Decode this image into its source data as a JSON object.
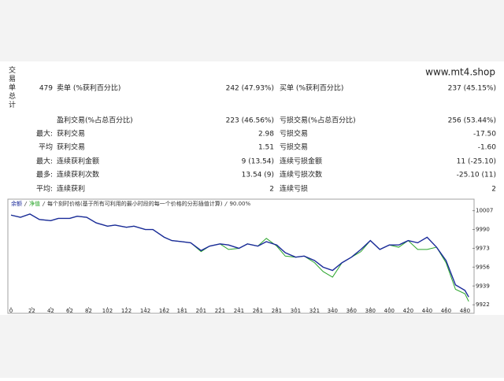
{
  "report": {
    "side_label": "交易单总计",
    "site": "www.mt4.shop",
    "rows": [
      [
        "479",
        "卖单 (%获利百分比)",
        "242 (47.93%)",
        "买单 (%获利百分比)",
        "237 (45.15%)"
      ],
      [
        null,
        "盈利交易(%占总百分比)",
        "223 (46.56%)",
        "亏损交易(%占总百分比)",
        "256 (53.44%)"
      ],
      [
        "最大:",
        "获利交易",
        "2.98",
        "亏损交易",
        "-17.50"
      ],
      [
        "平均",
        "获利交易",
        "1.51",
        "亏损交易",
        "-1.60"
      ],
      [
        "最大:",
        "连续获利金额",
        "9 (13.54)",
        "连续亏损金额",
        "11 (-25.10)"
      ],
      [
        "最多:",
        "连续获利次数",
        "13.54 (9)",
        "连续亏损次数",
        "-25.10 (11)"
      ],
      [
        "平均:",
        "连续获利",
        "2",
        "连续亏损",
        "2"
      ]
    ]
  },
  "chart_data": {
    "type": "line",
    "legend_note": "每个刻时价格(基于所有可利用的最小时段的每一个价格的分形插值计算)",
    "legend_quality": "90.00%",
    "x": [
      0,
      10,
      20,
      30,
      42,
      50,
      62,
      70,
      80,
      90,
      102,
      110,
      122,
      130,
      142,
      150,
      162,
      170,
      181,
      190,
      201,
      210,
      221,
      230,
      241,
      250,
      261,
      270,
      281,
      290,
      301,
      310,
      321,
      330,
      340,
      350,
      360,
      370,
      380,
      390,
      400,
      410,
      420,
      430,
      440,
      450,
      460,
      470,
      480,
      484
    ],
    "series": [
      {
        "name": "余额",
        "color": "#1a2a9a",
        "values": [
          10003,
          10001,
          10004,
          9999,
          9998,
          10000,
          10000,
          10002,
          10001,
          9996,
          9993,
          9994,
          9992,
          9993,
          9990,
          9990,
          9983,
          9980,
          9979,
          9978,
          9971,
          9975,
          9977,
          9976,
          9973,
          9977,
          9975,
          9979,
          9976,
          9969,
          9965,
          9966,
          9962,
          9956,
          9953,
          9960,
          9965,
          9972,
          9980,
          9972,
          9976,
          9976,
          9980,
          9978,
          9983,
          9974,
          9962,
          9940,
          9935,
          9929
        ]
      },
      {
        "name": "净值",
        "color": "#2aa52a",
        "values": [
          10003,
          10001,
          10004,
          9999,
          9998,
          10000,
          10000,
          10002,
          10001,
          9996,
          9993,
          9994,
          9992,
          9993,
          9990,
          9990,
          9983,
          9980,
          9979,
          9978,
          9970,
          9975,
          9977,
          9972,
          9973,
          9977,
          9975,
          9982,
          9975,
          9966,
          9965,
          9966,
          9960,
          9952,
          9947,
          9960,
          9965,
          9970,
          9980,
          9972,
          9976,
          9974,
          9980,
          9972,
          9972,
          9974,
          9960,
          9936,
          9932,
          9925
        ]
      }
    ],
    "xlim": [
      0,
      488
    ],
    "ylim": [
      9920,
      10011
    ],
    "xticks": [
      0,
      22,
      42,
      62,
      82,
      102,
      122,
      142,
      162,
      181,
      201,
      221,
      241,
      261,
      281,
      301,
      321,
      340,
      360,
      380,
      400,
      420,
      440,
      460,
      480
    ],
    "yticks": [
      10007,
      9990,
      9973,
      9956,
      9939,
      9922
    ]
  }
}
